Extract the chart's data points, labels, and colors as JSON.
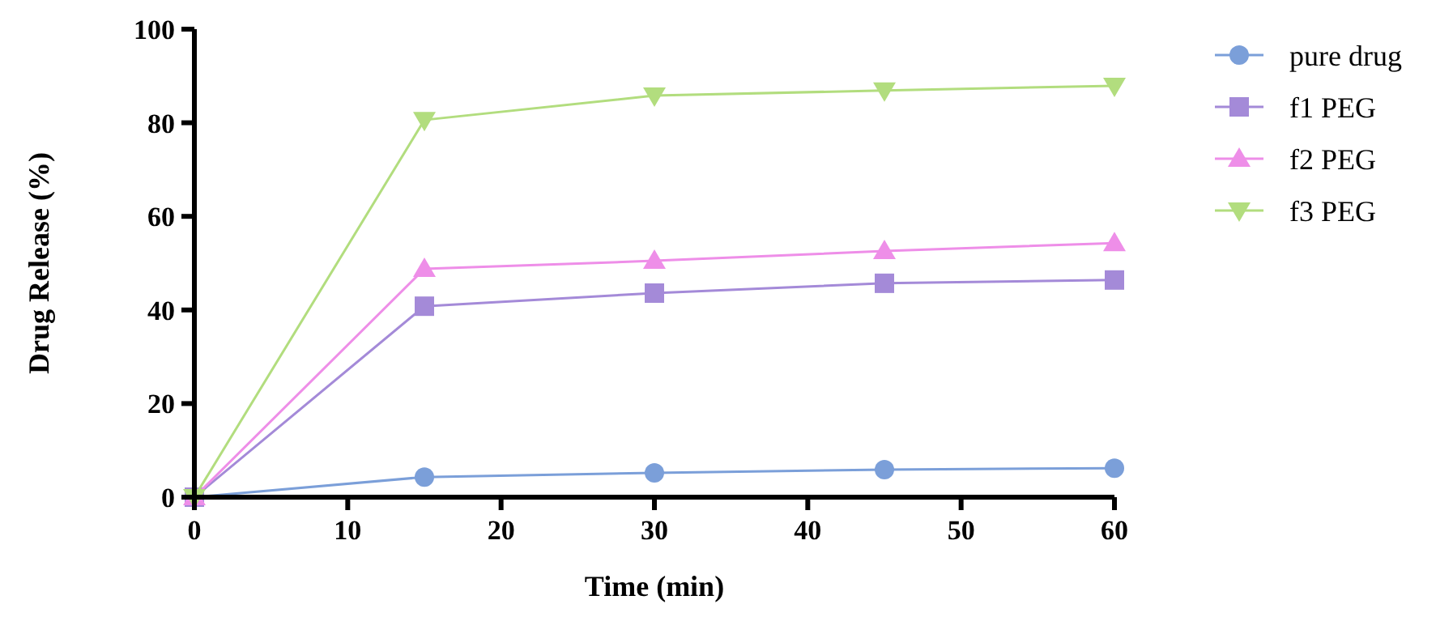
{
  "chart_data": {
    "type": "line",
    "xlabel": "Time (min)",
    "ylabel": "Drug Release (%)",
    "x": [
      0,
      15,
      30,
      45,
      60
    ],
    "xlim": [
      0,
      60
    ],
    "xticks": [
      0,
      10,
      20,
      30,
      40,
      50,
      60
    ],
    "ylim": [
      0,
      100
    ],
    "yticks": [
      0,
      20,
      40,
      60,
      80,
      100
    ],
    "grid": false,
    "legend": "top right",
    "line_style": "solid",
    "series": [
      {
        "name": "pure drug",
        "color": "#7b9fd9",
        "marker": "circle",
        "values": [
          0,
          4.3,
          5.2,
          5.9,
          6.2
        ]
      },
      {
        "name": "f1 PEG",
        "color": "#a48ad8",
        "marker": "square",
        "values": [
          0,
          40.8,
          43.6,
          45.7,
          46.4
        ]
      },
      {
        "name": "f2 PEG",
        "color": "#ee8ee8",
        "marker": "triangle",
        "values": [
          0,
          48.8,
          50.5,
          52.6,
          54.3
        ]
      },
      {
        "name": "f3 PEG",
        "color": "#b2dd7e",
        "marker": "triangle-down",
        "values": [
          0,
          80.6,
          85.8,
          86.9,
          87.9
        ]
      }
    ]
  }
}
